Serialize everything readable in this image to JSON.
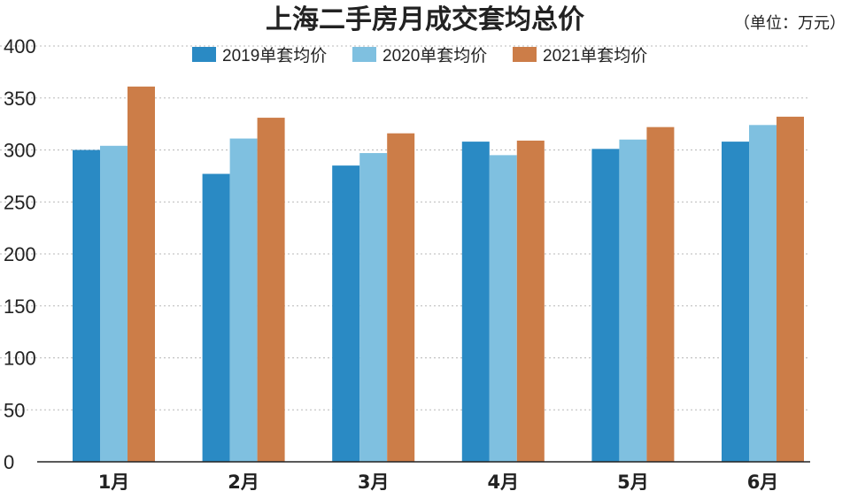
{
  "chart_data": {
    "type": "bar",
    "title": "上海二手房月成交套均总价",
    "unit_label": "（单位：万元）",
    "categories": [
      "1月",
      "2月",
      "3月",
      "4月",
      "5月",
      "6月"
    ],
    "series": [
      {
        "name": "2019单套均价",
        "color": "#2a8ac4",
        "values": [
          300,
          277,
          285,
          308,
          301,
          308
        ]
      },
      {
        "name": "2020单套均价",
        "color": "#7fc0e0",
        "values": [
          304,
          311,
          297,
          295,
          310,
          324
        ]
      },
      {
        "name": "2021单套均价",
        "color": "#cc7d48",
        "values": [
          361,
          331,
          316,
          309,
          322,
          332
        ]
      }
    ],
    "ylim": [
      0,
      400
    ],
    "yticks": [
      0,
      50,
      100,
      150,
      200,
      250,
      300,
      350,
      400
    ],
    "grid": true,
    "legend_position": "top-center"
  }
}
